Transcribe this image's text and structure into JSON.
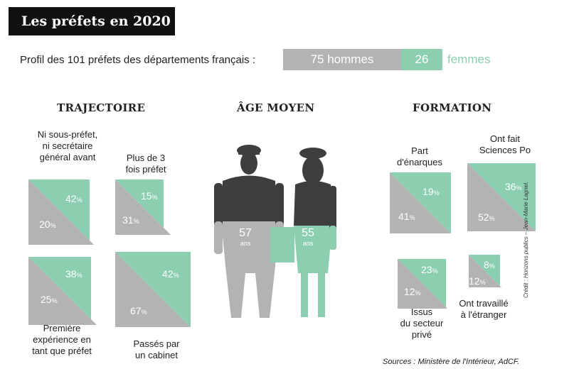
{
  "title": "Les préfets en 2020",
  "profile": {
    "label": "Profil des 101 préfets des départements français :",
    "men_value": 75,
    "men_label": "75 hommes",
    "women_value": 26,
    "women_number": "26",
    "women_label": "femmes"
  },
  "colors": {
    "grey": "#b3b3b3",
    "green": "#8ccfb0",
    "dark": "#3e3e3e",
    "black": "#111111"
  },
  "sections": {
    "trajectoire": "TRAJECTOIRE",
    "age": "ÂGE MOYEN",
    "formation": "FORMATION"
  },
  "chart_data": [
    {
      "type": "area",
      "group": "TRAJECTOIRE",
      "label": "Ni sous-préfet, ni secrétaire général avant",
      "series": [
        {
          "name": "femmes",
          "value": 42
        },
        {
          "name": "hommes",
          "value": 20
        }
      ],
      "unit": "%"
    },
    {
      "type": "area",
      "group": "TRAJECTOIRE",
      "label": "Plus de 3 fois préfet",
      "series": [
        {
          "name": "femmes",
          "value": 15
        },
        {
          "name": "hommes",
          "value": 31
        }
      ],
      "unit": "%"
    },
    {
      "type": "area",
      "group": "TRAJECTOIRE",
      "label": "Première expérience en tant que préfet",
      "series": [
        {
          "name": "femmes",
          "value": 38
        },
        {
          "name": "hommes",
          "value": 25
        }
      ],
      "unit": "%"
    },
    {
      "type": "area",
      "group": "TRAJECTOIRE",
      "label": "Passés par un cabinet",
      "series": [
        {
          "name": "femmes",
          "value": 42
        },
        {
          "name": "hommes",
          "value": 67
        }
      ],
      "unit": "%"
    },
    {
      "type": "bar",
      "group": "ÂGE MOYEN",
      "categories": [
        "hommes",
        "femmes"
      ],
      "values": [
        57,
        55
      ],
      "unit": "ans"
    },
    {
      "type": "area",
      "group": "FORMATION",
      "label": "Part d'énarques",
      "series": [
        {
          "name": "femmes",
          "value": 19
        },
        {
          "name": "hommes",
          "value": 41
        }
      ],
      "unit": "%"
    },
    {
      "type": "area",
      "group": "FORMATION",
      "label": "Ont fait Sciences Po",
      "series": [
        {
          "name": "femmes",
          "value": 36
        },
        {
          "name": "hommes",
          "value": 52
        }
      ],
      "unit": "%"
    },
    {
      "type": "area",
      "group": "FORMATION",
      "label": "Issus du secteur privé",
      "series": [
        {
          "name": "femmes",
          "value": 23
        },
        {
          "name": "hommes",
          "value": 12
        }
      ],
      "unit": "%"
    },
    {
      "type": "area",
      "group": "FORMATION",
      "label": "Ont travaillé à l'étranger",
      "series": [
        {
          "name": "femmes",
          "value": 8
        },
        {
          "name": "hommes",
          "value": 12
        }
      ],
      "unit": "%"
    }
  ],
  "labels": {
    "t1": [
      "Ni sous-préfet,",
      "ni secrétaire",
      "général avant"
    ],
    "t2": [
      "Plus de 3",
      "fois préfet"
    ],
    "t3": [
      "Première",
      "expérience en",
      "tant que préfet"
    ],
    "t4": [
      "Passés par",
      "un cabinet"
    ],
    "f1": [
      "Part",
      "d'énarques"
    ],
    "f2": [
      "Ont fait",
      "Sciences Po"
    ],
    "f3": [
      "Issus",
      "du secteur",
      "privé"
    ],
    "f4": [
      "Ont travaillé",
      "à l'étranger"
    ]
  },
  "age": {
    "men": "57",
    "women": "55",
    "unit": "ans"
  },
  "pct_sign": "%",
  "sources": "Sources : Ministère de l'Intérieur, AdCF.",
  "credit": "Crédit : Horizons publics – Jean-Marie Lagnel."
}
